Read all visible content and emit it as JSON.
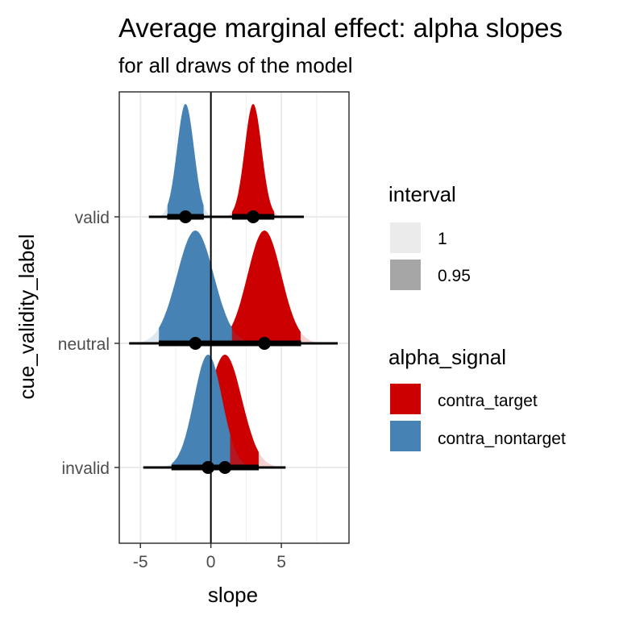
{
  "chart_data": {
    "type": "halfeye",
    "title": "Average marginal effect: alpha slopes",
    "subtitle": "for all draws of the model",
    "xlabel": "slope",
    "ylabel": "cue_validity_label",
    "xlim": [
      -6.5,
      9.8
    ],
    "x_ticks": [
      -5,
      0,
      5
    ],
    "x_tick_labels": [
      "-5",
      "0",
      "5"
    ],
    "categories": [
      "valid",
      "neutral",
      "invalid"
    ],
    "reference_line_x": 0,
    "grid": true,
    "legend_position": "right",
    "legends": {
      "interval": {
        "title": "interval",
        "entries": [
          {
            "label": "1",
            "color": "#ebebeb"
          },
          {
            "label": "0.95",
            "color": "#a6a6a6"
          }
        ]
      },
      "alpha_signal": {
        "title": "alpha_signal",
        "entries": [
          {
            "label": "contra_target",
            "color": "#cc0000"
          },
          {
            "label": "contra_nontarget",
            "color": "#4682b4"
          }
        ]
      }
    },
    "series": [
      {
        "name": "contra_target",
        "color": "#cc0000",
        "points": [
          {
            "category": "valid",
            "median": 3.0,
            "sd": 0.6,
            "ci95": [
              1.5,
              4.5
            ],
            "range": [
              -0.3,
              6.6
            ]
          },
          {
            "category": "neutral",
            "median": 3.8,
            "sd": 1.2,
            "ci95": [
              1.4,
              6.4
            ],
            "range": [
              -2.5,
              9.0
            ]
          },
          {
            "category": "invalid",
            "median": 1.0,
            "sd": 1.2,
            "ci95": [
              -1.4,
              3.4
            ],
            "range": [
              -4.0,
              5.3
            ]
          }
        ]
      },
      {
        "name": "contra_nontarget",
        "color": "#4682b4",
        "points": [
          {
            "category": "valid",
            "median": -1.8,
            "sd": 0.6,
            "ci95": [
              -3.1,
              -0.5
            ],
            "range": [
              -4.4,
              0.8
            ]
          },
          {
            "category": "neutral",
            "median": -1.1,
            "sd": 1.3,
            "ci95": [
              -3.7,
              1.5
            ],
            "range": [
              -5.8,
              2.5
            ]
          },
          {
            "category": "invalid",
            "median": -0.2,
            "sd": 1.0,
            "ci95": [
              -2.8,
              1.4
            ],
            "range": [
              -4.8,
              2.2
            ]
          }
        ]
      }
    ]
  }
}
